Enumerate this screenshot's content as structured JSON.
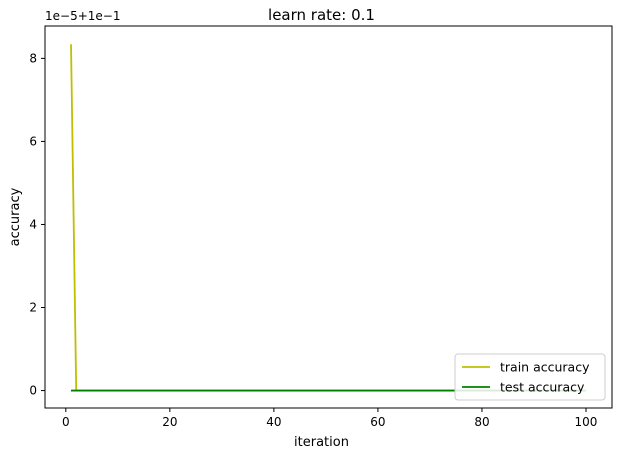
{
  "chart_data": {
    "type": "line",
    "title": "learn rate: 0.1",
    "xlabel": "iteration",
    "ylabel": "accuracy",
    "offset_text": "1e−5+1e−1",
    "xlim": [
      -4.0,
      105.0
    ],
    "ylim": [
      -0.42,
      8.78
    ],
    "xticks": [
      0,
      20,
      40,
      60,
      80,
      100
    ],
    "yticks": [
      0,
      2,
      4,
      6,
      8
    ],
    "grid": false,
    "legend_position": "lower-right",
    "series": [
      {
        "name": "train accuracy",
        "color": "#bfbf00",
        "x": [
          1,
          2,
          3,
          100
        ],
        "y": [
          8.34,
          0,
          0,
          0
        ]
      },
      {
        "name": "test accuracy",
        "color": "#008000",
        "x": [
          1,
          100
        ],
        "y": [
          0,
          0
        ]
      }
    ]
  }
}
